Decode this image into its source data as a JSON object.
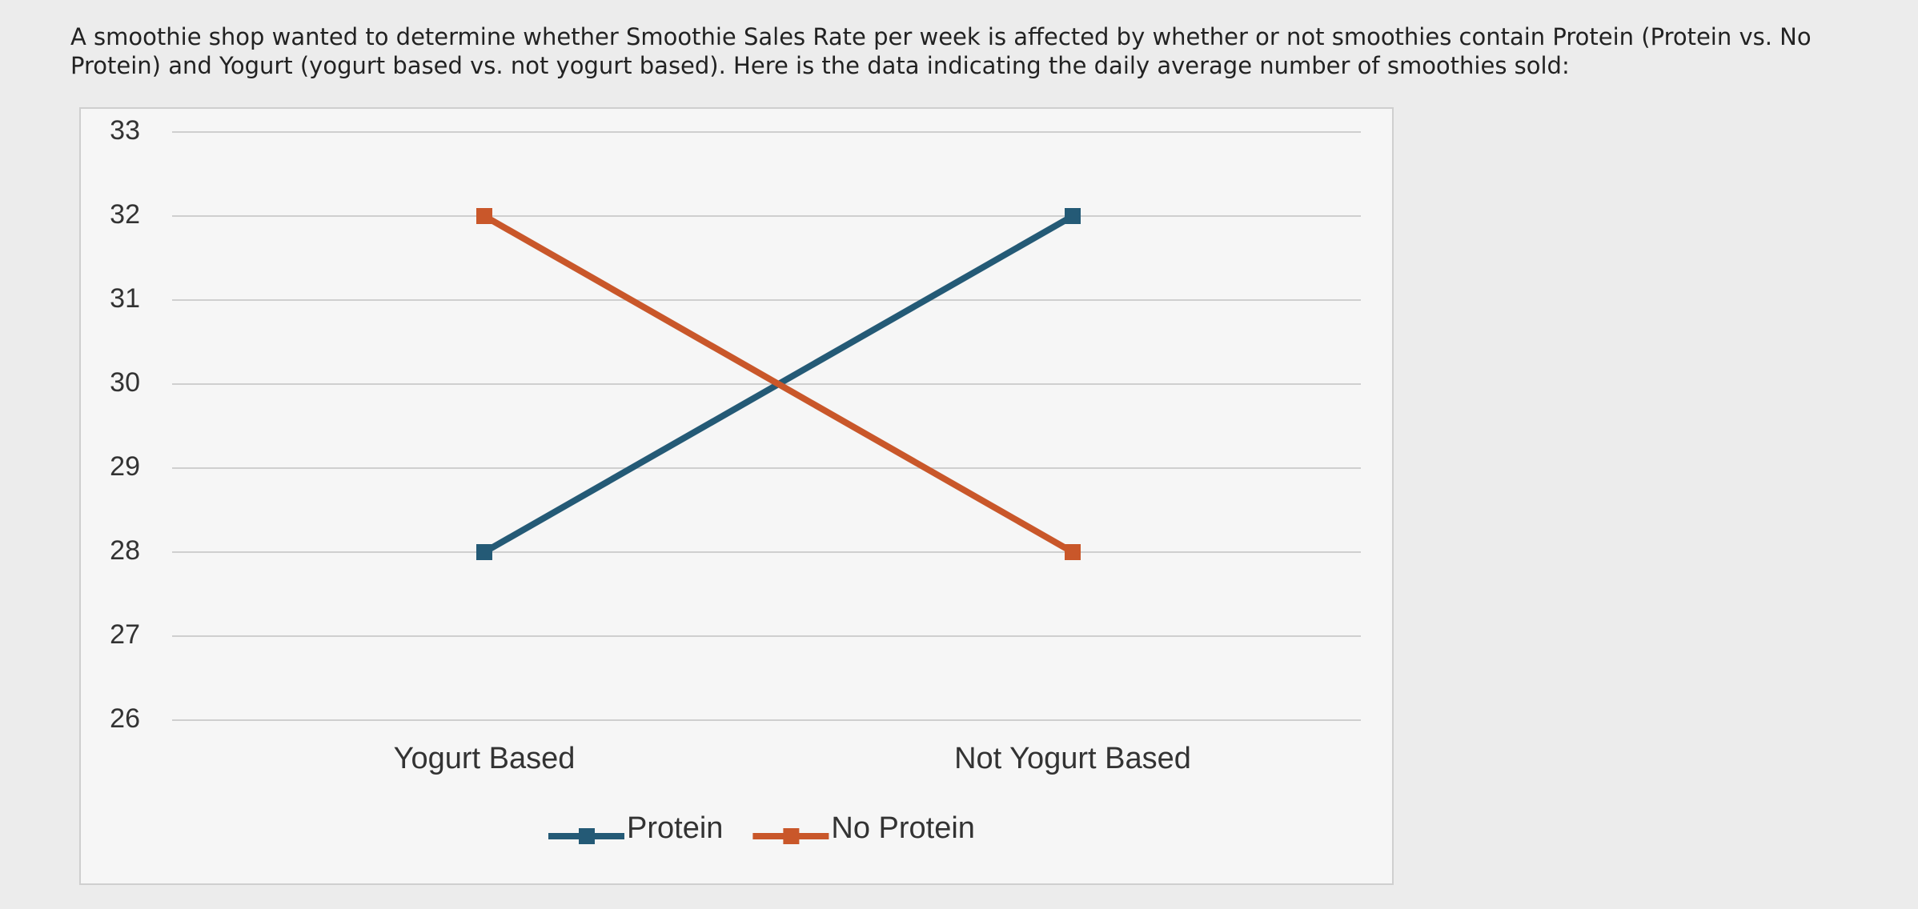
{
  "question": "A smoothie shop wanted to determine whether Smoothie Sales Rate per week is affected by whether or not smoothies contain Protein (Protein vs. No Protein) and Yogurt (yogurt based vs. not yogurt based).  Here is the data indicating the daily average number of smoothies sold:",
  "chart_data": {
    "type": "line",
    "categories": [
      "Yogurt Based",
      "Not Yogurt Based"
    ],
    "series": [
      {
        "name": "Protein",
        "color": "#245a76",
        "values": [
          28,
          32
        ]
      },
      {
        "name": "No Protein",
        "color": "#c9572a",
        "values": [
          32,
          28
        ]
      }
    ],
    "ylim": [
      26,
      33
    ],
    "yticks": [
      26,
      27,
      28,
      29,
      30,
      31,
      32,
      33
    ],
    "grid": true,
    "legend": "bottom"
  }
}
